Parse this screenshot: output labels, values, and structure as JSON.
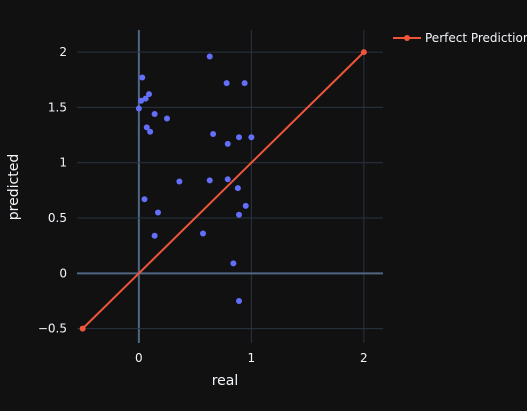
{
  "chart_data": {
    "type": "scatter",
    "xlabel": "real",
    "ylabel": "predicted",
    "xlim": [
      -0.55,
      2.17
    ],
    "ylim": [
      -0.63,
      2.2
    ],
    "xticks": [
      0,
      1,
      2
    ],
    "xtick_labels": [
      "0",
      "1",
      "2"
    ],
    "yticks": [
      -0.5,
      0,
      0.5,
      1,
      1.5,
      2
    ],
    "ytick_labels": [
      "−0.5",
      "0",
      "0.5",
      "1",
      "1.5",
      "2"
    ],
    "grid": true,
    "legend_position": "top-right",
    "series": [
      {
        "kind": "markers",
        "color": "#636efa",
        "points": [
          [
            0.63,
            1.96
          ],
          [
            0.03,
            1.77
          ],
          [
            0.78,
            1.72
          ],
          [
            0.94,
            1.72
          ],
          [
            0.09,
            1.62
          ],
          [
            0.06,
            1.58
          ],
          [
            0.02,
            1.56
          ],
          [
            0.0,
            1.49
          ],
          [
            0.14,
            1.44
          ],
          [
            0.25,
            1.4
          ],
          [
            0.07,
            1.32
          ],
          [
            0.1,
            1.28
          ],
          [
            0.66,
            1.26
          ],
          [
            0.89,
            1.23
          ],
          [
            1.0,
            1.23
          ],
          [
            0.79,
            1.17
          ],
          [
            0.36,
            0.83
          ],
          [
            0.63,
            0.84
          ],
          [
            0.79,
            0.85
          ],
          [
            0.88,
            0.77
          ],
          [
            0.05,
            0.67
          ],
          [
            0.95,
            0.61
          ],
          [
            0.17,
            0.55
          ],
          [
            0.89,
            0.53
          ],
          [
            0.14,
            0.34
          ],
          [
            0.57,
            0.36
          ],
          [
            0.84,
            0.09
          ],
          [
            0.89,
            -0.25
          ]
        ]
      },
      {
        "name": "Perfect Prediction",
        "kind": "lines+markers",
        "color": "#ef553b",
        "points": [
          [
            -0.5,
            -0.5
          ],
          [
            2.0,
            2.0
          ]
        ]
      }
    ]
  }
}
